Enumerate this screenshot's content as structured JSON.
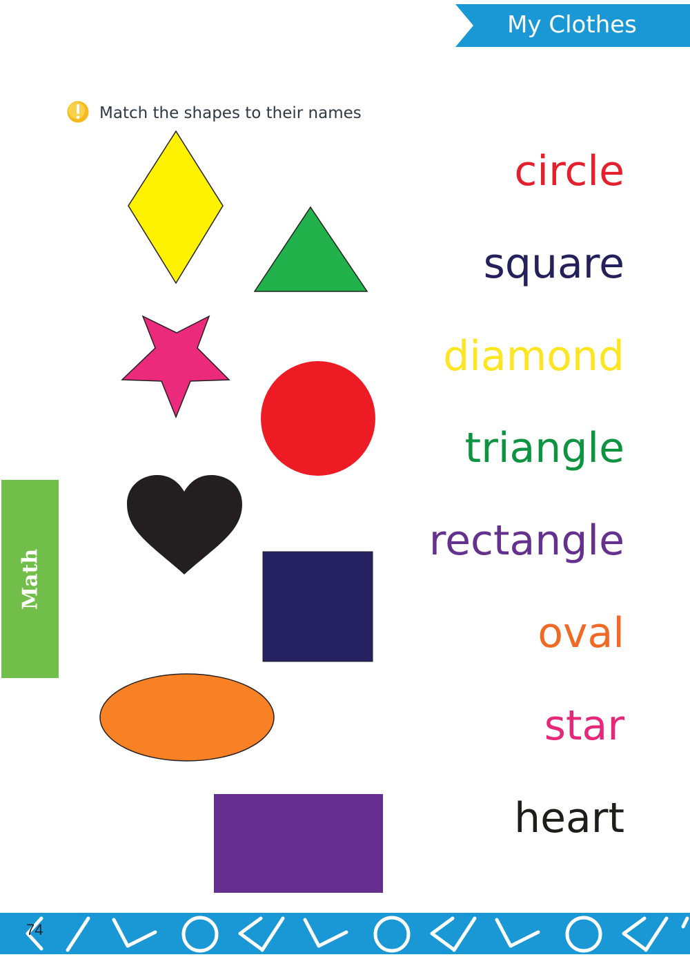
{
  "header": {
    "title": "My Clothes"
  },
  "instruction": {
    "text": "Match the shapes to their names",
    "icon": "alert-icon"
  },
  "side_tab": {
    "label": "Math"
  },
  "words": [
    {
      "label": "circle",
      "color": "#e4202e"
    },
    {
      "label": "square",
      "color": "#24205c"
    },
    {
      "label": "diamond",
      "color": "#fde521"
    },
    {
      "label": "triangle",
      "color": "#0e9441"
    },
    {
      "label": "rectangle",
      "color": "#64318f"
    },
    {
      "label": "oval",
      "color": "#f06a25"
    },
    {
      "label": "star",
      "color": "#e5287a"
    },
    {
      "label": "heart",
      "color": "#1d1d1b"
    }
  ],
  "shapes": [
    {
      "name": "diamond",
      "color": "#fff200"
    },
    {
      "name": "triangle",
      "color": "#22b24c"
    },
    {
      "name": "star",
      "color": "#ec2a7b"
    },
    {
      "name": "circle",
      "color": "#ed1c24"
    },
    {
      "name": "heart",
      "color": "#231f20"
    },
    {
      "name": "square",
      "color": "#262262"
    },
    {
      "name": "oval",
      "color": "#f98125"
    },
    {
      "name": "rectangle",
      "color": "#652d90"
    }
  ],
  "footer": {
    "page_number": "74"
  }
}
